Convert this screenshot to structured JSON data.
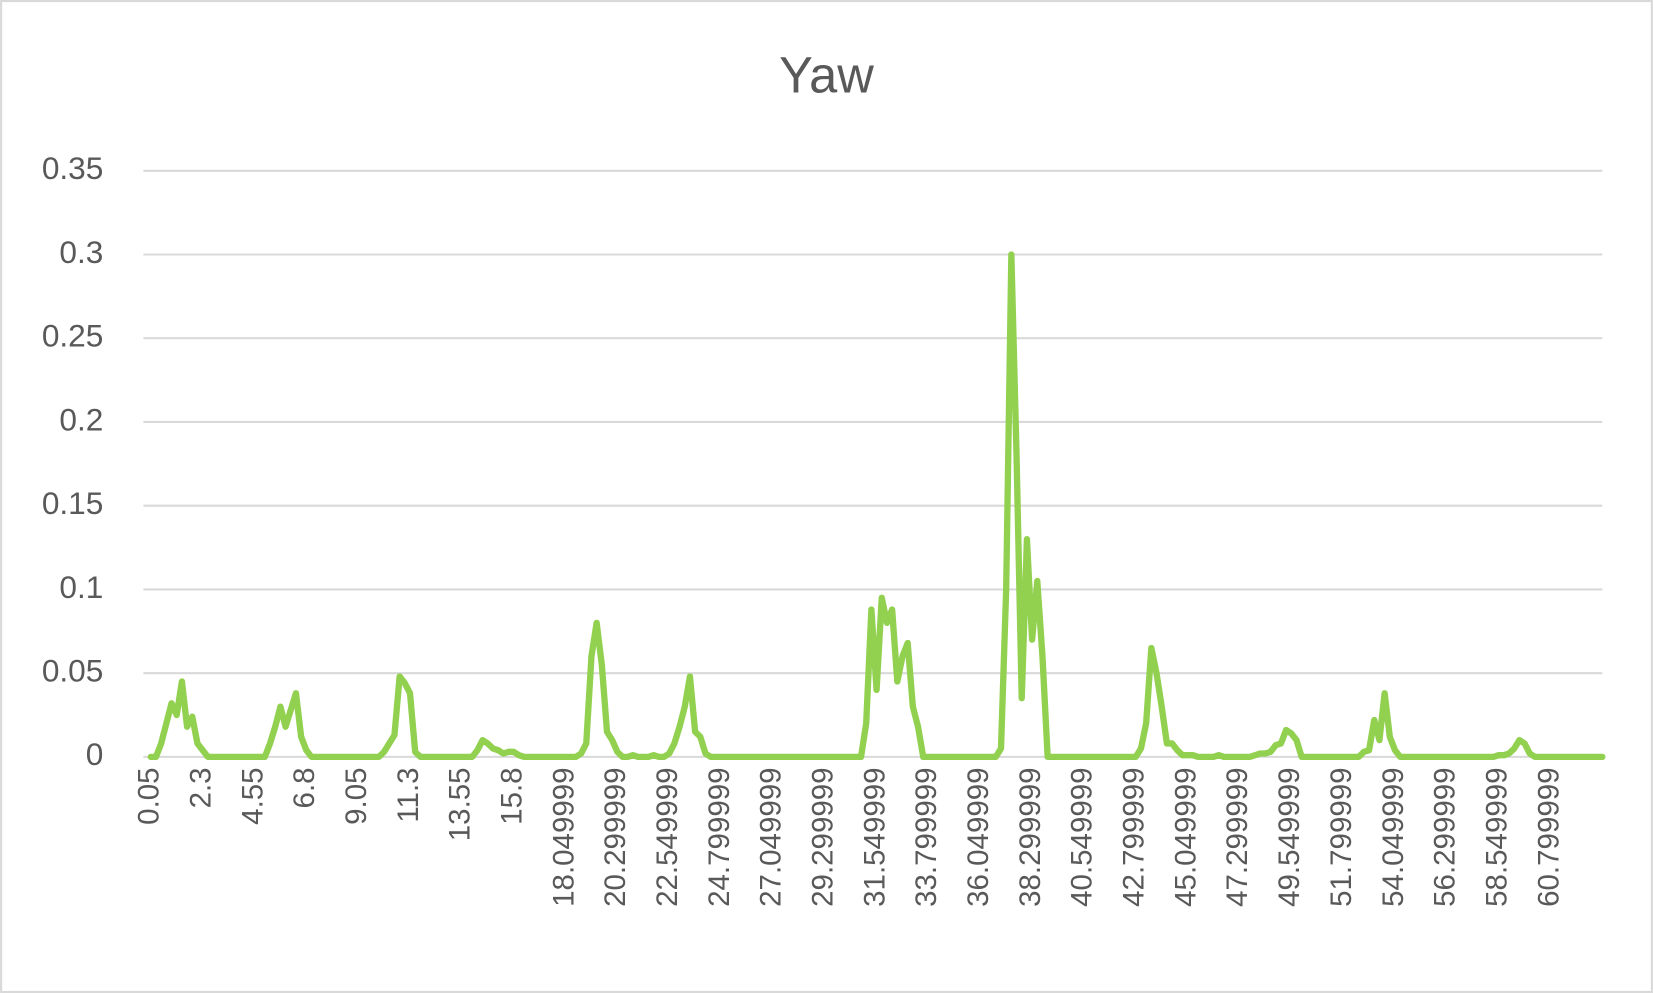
{
  "chart_data": {
    "type": "line",
    "title": "Yaw",
    "color": "#92d050",
    "grid": true,
    "ylim": [
      0,
      0.35
    ],
    "yticks": [
      0,
      0.05,
      0.1,
      0.15,
      0.2,
      0.25,
      0.3,
      0.35
    ],
    "categories": [
      "0.05",
      null,
      null,
      null,
      null,
      null,
      null,
      null,
      null,
      null,
      "2.3",
      null,
      null,
      null,
      null,
      null,
      null,
      null,
      null,
      null,
      "4.55",
      null,
      null,
      null,
      null,
      null,
      null,
      null,
      null,
      null,
      "6.8",
      null,
      null,
      null,
      null,
      null,
      null,
      null,
      null,
      null,
      "9.05",
      null,
      null,
      null,
      null,
      null,
      null,
      null,
      null,
      null,
      "11.3",
      null,
      null,
      null,
      null,
      null,
      null,
      null,
      null,
      null,
      "13.55",
      null,
      null,
      null,
      null,
      null,
      null,
      null,
      null,
      null,
      "15.8",
      null,
      null,
      null,
      null,
      null,
      null,
      null,
      null,
      null,
      "18.049999",
      null,
      null,
      null,
      null,
      null,
      null,
      null,
      null,
      null,
      "20.299999",
      null,
      null,
      null,
      null,
      null,
      null,
      null,
      null,
      null,
      "22.549999",
      null,
      null,
      null,
      null,
      null,
      null,
      null,
      null,
      null,
      "24.799999",
      null,
      null,
      null,
      null,
      null,
      null,
      null,
      null,
      null,
      "27.049999",
      null,
      null,
      null,
      null,
      null,
      null,
      null,
      null,
      null,
      "29.299999",
      null,
      null,
      null,
      null,
      null,
      null,
      null,
      null,
      null,
      "31.549999",
      null,
      null,
      null,
      null,
      null,
      null,
      null,
      null,
      null,
      "33.799999",
      null,
      null,
      null,
      null,
      null,
      null,
      null,
      null,
      null,
      "36.049999",
      null,
      null,
      null,
      null,
      null,
      null,
      null,
      null,
      null,
      "38.299999",
      null,
      null,
      null,
      null,
      null,
      null,
      null,
      null,
      null,
      "40.549999",
      null,
      null,
      null,
      null,
      null,
      null,
      null,
      null,
      null,
      "42.799999",
      null,
      null,
      null,
      null,
      null,
      null,
      null,
      null,
      null,
      "45.049999",
      null,
      null,
      null,
      null,
      null,
      null,
      null,
      null,
      null,
      "47.299999",
      null,
      null,
      null,
      null,
      null,
      null,
      null,
      null,
      null,
      "49.549999",
      null,
      null,
      null,
      null,
      null,
      null,
      null,
      null,
      null,
      "51.799999",
      null,
      null,
      null,
      null,
      null,
      null,
      null,
      null,
      null,
      "54.049999",
      null,
      null,
      null,
      null,
      null,
      null,
      null,
      null,
      null,
      "56.299999",
      null,
      null,
      null,
      null,
      null,
      null,
      null,
      null,
      null,
      "58.549999",
      null,
      null,
      null,
      null,
      null,
      null,
      null,
      null,
      null,
      "60.799999",
      null,
      null,
      null,
      null,
      null,
      null,
      null,
      null,
      null,
      null
    ],
    "values": [
      0,
      0,
      0.008,
      0.02,
      0.032,
      0.025,
      0.045,
      0.018,
      0.024,
      0.008,
      0.004,
      0,
      0,
      0,
      0,
      0,
      0,
      0,
      0,
      0,
      0,
      0,
      0,
      0.008,
      0.018,
      0.03,
      0.018,
      0.028,
      0.038,
      0.012,
      0.004,
      0,
      0,
      0,
      0,
      0,
      0,
      0,
      0,
      0,
      0,
      0,
      0,
      0,
      0,
      0.003,
      0.008,
      0.013,
      0.048,
      0.044,
      0.038,
      0.003,
      0,
      0,
      0,
      0,
      0,
      0,
      0,
      0,
      0,
      0,
      0,
      0.004,
      0.01,
      0.008,
      0.005,
      0.004,
      0.002,
      0.003,
      0.003,
      0.001,
      0,
      0,
      0,
      0,
      0,
      0,
      0,
      0,
      0,
      0,
      0,
      0.002,
      0.008,
      0.06,
      0.08,
      0.055,
      0.015,
      0.01,
      0.003,
      0,
      0,
      0.001,
      0,
      0,
      0,
      0.001,
      0,
      0,
      0.002,
      0.008,
      0.018,
      0.03,
      0.048,
      0.015,
      0.012,
      0.002,
      0,
      0,
      0,
      0,
      0,
      0,
      0,
      0,
      0,
      0,
      0,
      0,
      0,
      0,
      0,
      0,
      0,
      0,
      0,
      0,
      0,
      0,
      0,
      0,
      0,
      0,
      0,
      0,
      0,
      0,
      0.02,
      0.088,
      0.04,
      0.095,
      0.08,
      0.088,
      0.045,
      0.06,
      0.068,
      0.03,
      0.018,
      0,
      0,
      0,
      0,
      0,
      0,
      0,
      0,
      0,
      0,
      0,
      0,
      0,
      0,
      0,
      0.005,
      0.1,
      0.3,
      0.18,
      0.035,
      0.13,
      0.07,
      0.105,
      0.06,
      0,
      0,
      0,
      0,
      0,
      0,
      0,
      0,
      0,
      0,
      0,
      0,
      0,
      0,
      0,
      0,
      0,
      0,
      0.005,
      0.02,
      0.065,
      0.05,
      0.03,
      0.008,
      0.008,
      0.004,
      0.001,
      0.001,
      0.001,
      0,
      0,
      0,
      0,
      0.001,
      0,
      0,
      0,
      0,
      0,
      0,
      0.001,
      0.002,
      0.002,
      0.003,
      0.007,
      0.008,
      0.016,
      0.014,
      0.01,
      0,
      0,
      0,
      0,
      0,
      0,
      0,
      0,
      0,
      0,
      0,
      0,
      0.003,
      0.004,
      0.022,
      0.01,
      0.038,
      0.012,
      0.004,
      0,
      0,
      0,
      0,
      0,
      0,
      0,
      0,
      0,
      0,
      0,
      0,
      0,
      0,
      0,
      0,
      0,
      0,
      0,
      0.001,
      0.001,
      0.002,
      0.005,
      0.01,
      0.008,
      0.002,
      0,
      0,
      0,
      0,
      0,
      0,
      0,
      0,
      0,
      0,
      0,
      0,
      0,
      0
    ]
  }
}
